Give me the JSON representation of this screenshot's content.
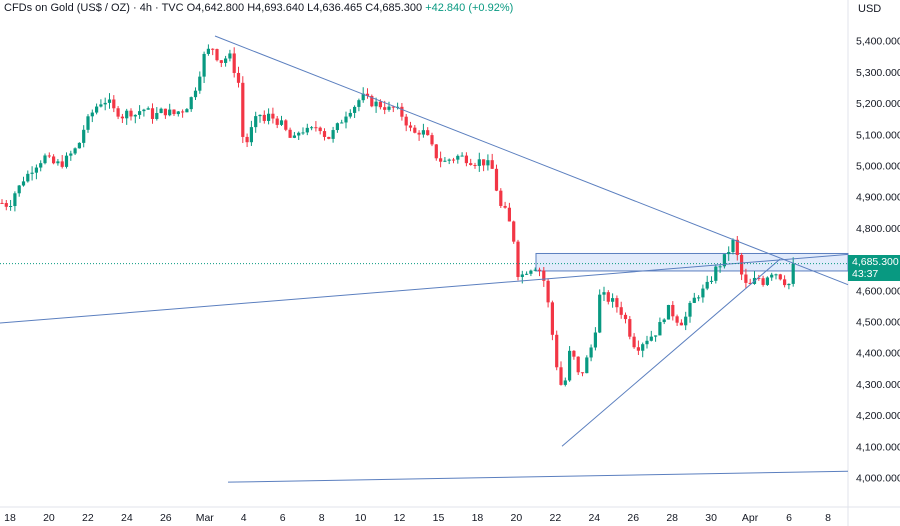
{
  "header": {
    "symbol": "CFDs on Gold (US$ / OZ)",
    "interval": "4h",
    "source": "TVC",
    "open": "O4,642.800",
    "high": "H4,693.640",
    "low": "L4,636.465",
    "close": "C4,685.300",
    "change": "+42.840 (+0.92%)"
  },
  "currency": "USD",
  "last_price": {
    "price": "4,685.300",
    "countdown": "43:37"
  },
  "colors": {
    "up": "#089981",
    "down": "#f23645",
    "line": "#5b7fbf",
    "zone_fill": "#dbe6fa",
    "zone_border": "#5b7fbf"
  },
  "chart_data": {
    "type": "candlestick",
    "title": "CFDs on Gold (US$ / OZ)",
    "ylim": [
      3950,
      5450
    ],
    "x_ticks": [
      "18",
      "20",
      "22",
      "24",
      "26",
      "Mar",
      "4",
      "6",
      "8",
      "10",
      "12",
      "15",
      "18",
      "20",
      "22",
      "24",
      "26",
      "28",
      "30",
      "Apr",
      "6",
      "8"
    ],
    "y_ticks": [
      4000,
      4100,
      4200,
      4300,
      4400,
      4500,
      4600,
      4700,
      4800,
      4900,
      5000,
      5100,
      5200,
      5300,
      5400
    ],
    "y_tick_labels": [
      "4,000.000",
      "4,100.000",
      "4,200.000",
      "4,300.000",
      "4,400.000",
      "4,500.000",
      "4,600.000",
      "4,700.000",
      "4,800.000",
      "4,900.000",
      "5,000.000",
      "5,100.000",
      "5,200.000",
      "5,300.000",
      "5,400.000"
    ],
    "price_path": [
      [
        0,
        4880
      ],
      [
        4,
        4880
      ],
      [
        9,
        4870
      ],
      [
        14,
        4910
      ],
      [
        19,
        4930
      ],
      [
        24,
        4960
      ],
      [
        29,
        4975
      ],
      [
        34,
        5000
      ],
      [
        39,
        5010
      ],
      [
        44,
        5030
      ],
      [
        49,
        5015
      ],
      [
        54,
        5005
      ],
      [
        59,
        5005
      ],
      [
        64,
        5010
      ],
      [
        69,
        5030
      ],
      [
        74,
        5045
      ],
      [
        79,
        5070
      ],
      [
        84,
        5120
      ],
      [
        89,
        5150
      ],
      [
        94,
        5180
      ],
      [
        99,
        5200
      ],
      [
        104,
        5210
      ],
      [
        109,
        5200
      ],
      [
        114,
        5175
      ],
      [
        119,
        5170
      ],
      [
        124,
        5155
      ],
      [
        129,
        5180
      ],
      [
        134,
        5160
      ],
      [
        139,
        5175
      ],
      [
        144,
        5180
      ],
      [
        149,
        5170
      ],
      [
        154,
        5155
      ],
      [
        159,
        5170
      ],
      [
        164,
        5175
      ],
      [
        169,
        5170
      ],
      [
        174,
        5165
      ],
      [
        179,
        5175
      ],
      [
        184,
        5180
      ],
      [
        189,
        5200
      ],
      [
        194,
        5235
      ],
      [
        199,
        5290
      ],
      [
        204,
        5350
      ],
      [
        209,
        5370
      ],
      [
        214,
        5380
      ],
      [
        219,
        5330
      ],
      [
        224,
        5340
      ],
      [
        229,
        5355
      ],
      [
        234,
        5310
      ],
      [
        239,
        5260
      ],
      [
        244,
        5040
      ],
      [
        249,
        5100
      ],
      [
        254,
        5130
      ],
      [
        259,
        5170
      ],
      [
        264,
        5140
      ],
      [
        269,
        5160
      ],
      [
        274,
        5150
      ],
      [
        279,
        5140
      ],
      [
        284,
        5120
      ],
      [
        289,
        5090
      ],
      [
        294,
        5080
      ],
      [
        299,
        5110
      ],
      [
        304,
        5115
      ],
      [
        309,
        5105
      ],
      [
        314,
        5120
      ],
      [
        319,
        5130
      ],
      [
        324,
        5100
      ],
      [
        329,
        5090
      ],
      [
        334,
        5110
      ],
      [
        339,
        5130
      ],
      [
        344,
        5160
      ],
      [
        349,
        5180
      ],
      [
        354,
        5190
      ],
      [
        359,
        5210
      ],
      [
        364,
        5220
      ],
      [
        369,
        5205
      ],
      [
        374,
        5200
      ],
      [
        379,
        5195
      ],
      [
        384,
        5190
      ],
      [
        389,
        5180
      ],
      [
        394,
        5185
      ],
      [
        399,
        5170
      ],
      [
        404,
        5155
      ],
      [
        409,
        5120
      ],
      [
        414,
        5100
      ],
      [
        419,
        5110
      ],
      [
        424,
        5105
      ],
      [
        429,
        5080
      ],
      [
        434,
        5040
      ],
      [
        439,
        5020
      ],
      [
        444,
        5010
      ],
      [
        449,
        5020
      ],
      [
        454,
        5025
      ],
      [
        459,
        5030
      ],
      [
        464,
        5025
      ],
      [
        469,
        5020
      ],
      [
        474,
        5010
      ],
      [
        479,
        5015
      ],
      [
        484,
        5010
      ],
      [
        489,
        5000
      ],
      [
        494,
        4980
      ],
      [
        499,
        4870
      ],
      [
        504,
        4860
      ],
      [
        509,
        4820
      ],
      [
        514,
        4760
      ],
      [
        519,
        4630
      ],
      [
        524,
        4660
      ],
      [
        529,
        4670
      ],
      [
        534,
        4680
      ],
      [
        539,
        4670
      ],
      [
        544,
        4630
      ],
      [
        549,
        4540
      ],
      [
        554,
        4420
      ],
      [
        559,
        4310
      ],
      [
        564,
        4280
      ],
      [
        569,
        4400
      ],
      [
        574,
        4380
      ],
      [
        579,
        4320
      ],
      [
        584,
        4350
      ],
      [
        589,
        4400
      ],
      [
        594,
        4440
      ],
      [
        599,
        4580
      ],
      [
        604,
        4580
      ],
      [
        609,
        4570
      ],
      [
        614,
        4560
      ],
      [
        619,
        4540
      ],
      [
        624,
        4520
      ],
      [
        629,
        4470
      ],
      [
        634,
        4430
      ],
      [
        639,
        4420
      ],
      [
        644,
        4440
      ],
      [
        649,
        4450
      ],
      [
        654,
        4460
      ],
      [
        659,
        4480
      ],
      [
        664,
        4520
      ],
      [
        669,
        4540
      ],
      [
        674,
        4520
      ],
      [
        679,
        4500
      ],
      [
        684,
        4500
      ],
      [
        689,
        4540
      ],
      [
        694,
        4570
      ],
      [
        699,
        4590
      ],
      [
        704,
        4600
      ],
      [
        709,
        4620
      ],
      [
        714,
        4660
      ],
      [
        719,
        4680
      ],
      [
        724,
        4700
      ],
      [
        729,
        4730
      ],
      [
        734,
        4760
      ],
      [
        739,
        4680
      ],
      [
        744,
        4620
      ],
      [
        749,
        4610
      ],
      [
        754,
        4630
      ],
      [
        759,
        4640
      ],
      [
        764,
        4625
      ],
      [
        769,
        4660
      ],
      [
        774,
        4660
      ],
      [
        779,
        4650
      ],
      [
        784,
        4630
      ],
      [
        789,
        4620
      ],
      [
        794,
        4685
      ]
    ],
    "trendlines": [
      {
        "from": [
          215,
          5415
        ],
        "to": [
          848,
          4618
        ]
      },
      {
        "from": [
          0,
          4495
        ],
        "to": [
          848,
          4715
        ]
      },
      {
        "from": [
          562,
          4100
        ],
        "to": [
          780,
          4700
        ]
      },
      {
        "from": [
          228,
          3985
        ],
        "to": [
          848,
          4020
        ]
      }
    ],
    "zone": {
      "x_start": 536,
      "x_end": 848,
      "y_top": 4718,
      "y_bottom": 4662
    },
    "last_price_level": 4685.3
  }
}
